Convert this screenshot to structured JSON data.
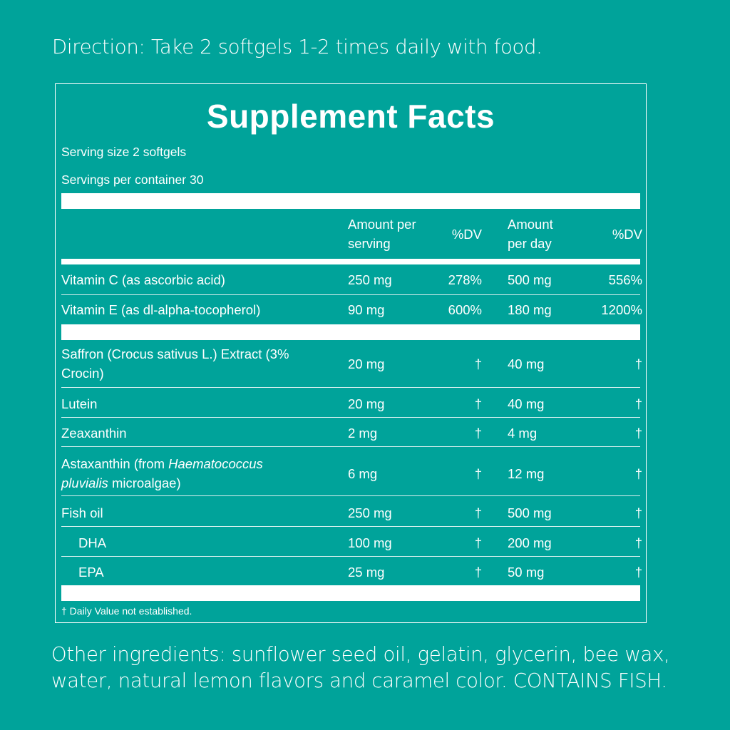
{
  "direction": "Direction: Take 2 softgels 1-2 times daily with food.",
  "panel": {
    "title": "Supplement Facts",
    "serving_size": "Serving size 2 softgels",
    "servings_per_container": "Servings per container 30",
    "headers": {
      "amount_per_serving_line1": "Amount per",
      "amount_per_serving_line2": "serving",
      "dv1": "%DV",
      "amount_per_day_line1": "Amount",
      "amount_per_day_line2": "per day",
      "dv2": "%DV"
    },
    "vitamins": [
      {
        "name": "Vitamin C (as ascorbic acid)",
        "serving": "250 mg",
        "dv1": "278%",
        "day": "500 mg",
        "dv2": "556%"
      },
      {
        "name": "Vitamin E (as dl-alpha-tocopherol)",
        "serving": "90 mg",
        "dv1": "600%",
        "day": "180 mg",
        "dv2": "1200%"
      }
    ],
    "others": [
      {
        "name_line1": "Saffron (Crocus sativus L.) Extract (3%",
        "name_line2": "Crocin)",
        "serving": "20 mg",
        "dv1": "†",
        "day": "40 mg",
        "dv2": "†"
      },
      {
        "name": "Lutein",
        "serving": "20 mg",
        "dv1": "†",
        "day": "40 mg",
        "dv2": "†"
      },
      {
        "name": "Zeaxanthin",
        "serving": "2 mg",
        "dv1": "†",
        "day": "4 mg",
        "dv2": "†"
      },
      {
        "name_line1_plain": "Astaxanthin (from ",
        "name_line1_italic": "Haematococcus",
        "name_line2_italic": "pluvialis",
        "name_line2_plain": " microalgae)",
        "serving": "6 mg",
        "dv1": "†",
        "day": "12 mg",
        "dv2": "†"
      },
      {
        "name": "Fish oil",
        "serving": "250 mg",
        "dv1": "†",
        "day": "500 mg",
        "dv2": "†"
      },
      {
        "name": "DHA",
        "serving": "100 mg",
        "dv1": "†",
        "day": "200 mg",
        "dv2": "†"
      },
      {
        "name": "EPA",
        "serving": "25 mg",
        "dv1": "†",
        "day": "50 mg",
        "dv2": "†"
      }
    ],
    "footnote": "† Daily Value not established."
  },
  "other_ingredients": {
    "line1": "Other ingredients: sunflower seed oil, gelatin, glycerin, bee wax,",
    "line2": "water, natural lemon flavors and caramel color. CONTAINS FISH."
  },
  "colors": {
    "background": "#00a39a",
    "foreground": "#ffffff"
  }
}
